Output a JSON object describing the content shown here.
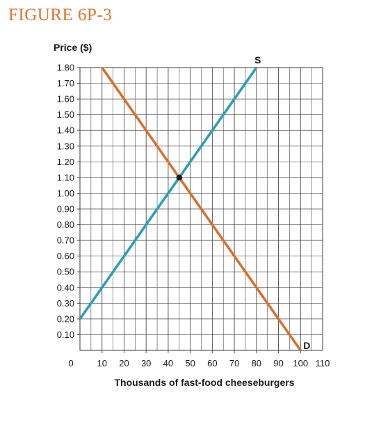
{
  "figure_title": "FIGURE 6P-3",
  "colors": {
    "title": "#e0742c",
    "supply": "#2a9fb8",
    "demand": "#d9702a",
    "grid": "#4a4a4a",
    "equilibrium": "#1a1a1a"
  },
  "chart_data": {
    "type": "line",
    "ylabel": "Price ($)",
    "xlabel": "Thousands of fast-food cheeseburgers",
    "xlim": [
      0,
      110
    ],
    "ylim": [
      0,
      1.8
    ],
    "grid": true,
    "x_ticks": [
      "0",
      "10",
      "20",
      "30",
      "40",
      "50",
      "60",
      "70",
      "80",
      "90",
      "100",
      "110"
    ],
    "y_ticks": [
      "1.80",
      "1.70",
      "1.60",
      "1.50",
      "1.40",
      "1.30",
      "1.20",
      "1.10",
      "1.00",
      "0.90",
      "0.80",
      "0.70",
      "0.60",
      "0.50",
      "0.40",
      "0.30",
      "0.20",
      "0.10"
    ],
    "series": [
      {
        "name": "S",
        "points": [
          [
            0,
            0.2
          ],
          [
            80,
            1.8
          ]
        ]
      },
      {
        "name": "D",
        "points": [
          [
            10,
            1.8
          ],
          [
            100,
            0
          ]
        ]
      }
    ],
    "equilibrium": {
      "x": 45,
      "y": 1.1
    }
  }
}
